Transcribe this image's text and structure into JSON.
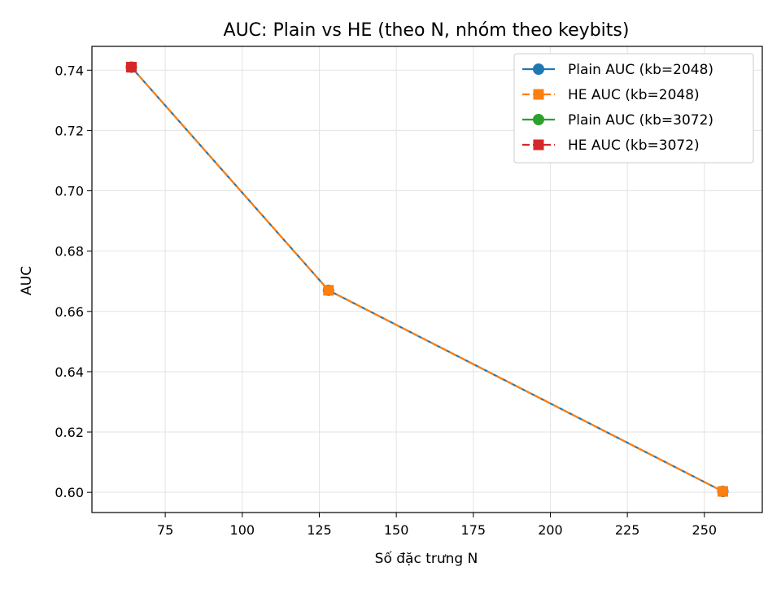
{
  "chart_data": {
    "type": "line",
    "title": "AUC: Plain vs HE (theo N, nhóm theo keybits)",
    "xlabel": "Số đặc trưng N",
    "ylabel": "AUC",
    "xlim": [
      51.2,
      268.8
    ],
    "ylim": [
      0.5933,
      0.7479
    ],
    "xticks": [
      75,
      100,
      125,
      150,
      175,
      200,
      225,
      250
    ],
    "yticks": [
      0.6,
      0.62,
      0.64,
      0.66,
      0.68,
      0.7,
      0.72,
      0.74
    ],
    "grid": true,
    "legend_position": "top-right",
    "series": [
      {
        "name": "Plain AUC (kb=2048)",
        "x": [
          64,
          128,
          256
        ],
        "y": [
          0.741,
          0.667,
          0.6003
        ],
        "color": "#1f77b4",
        "marker": "circle",
        "dashed": false
      },
      {
        "name": "HE AUC (kb=2048)",
        "x": [
          64,
          128,
          256
        ],
        "y": [
          0.741,
          0.667,
          0.6003
        ],
        "color": "#ff7f0e",
        "marker": "square",
        "dashed": true
      },
      {
        "name": "Plain AUC (kb=3072)",
        "x": [
          64
        ],
        "y": [
          0.741
        ],
        "color": "#2ca02c",
        "marker": "circle",
        "dashed": false
      },
      {
        "name": "HE AUC (kb=3072)",
        "x": [
          64
        ],
        "y": [
          0.741
        ],
        "color": "#d62728",
        "marker": "square",
        "dashed": true
      }
    ]
  }
}
